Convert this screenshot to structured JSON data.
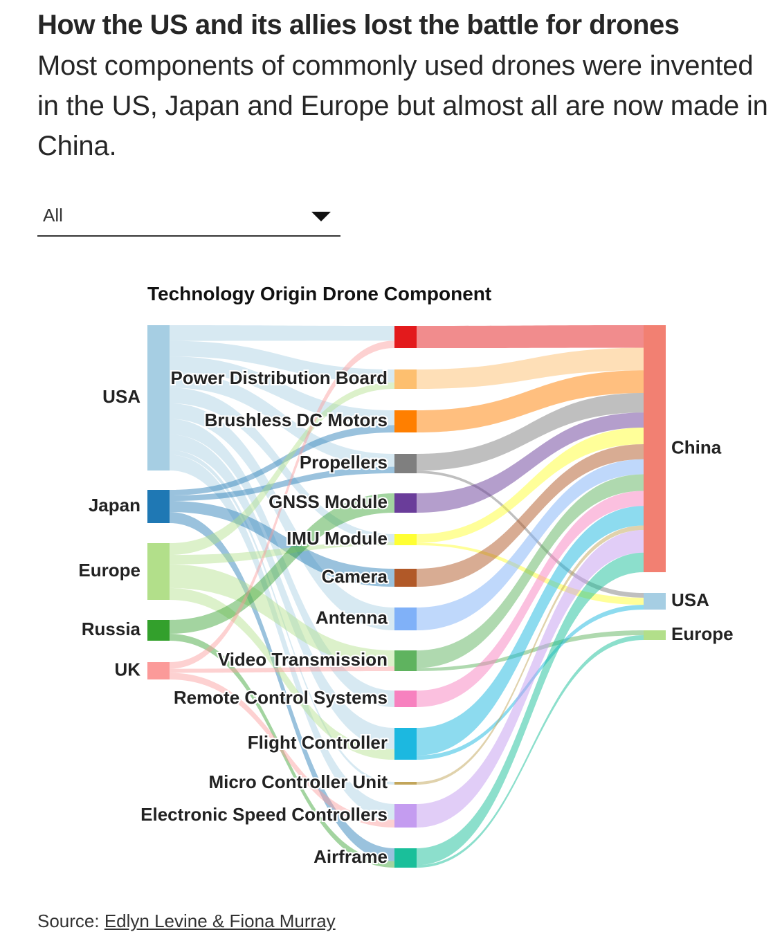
{
  "title": "How the US and its allies lost the battle for drones",
  "subtitle": "Most components of commonly used drones were invented in the US, Japan and Europe but almost all are now made in China.",
  "filter": {
    "selected": "All"
  },
  "source": {
    "label": "Source: ",
    "link_text": "Edlyn Levine & Fiona Murray"
  },
  "chart_data": {
    "type": "sankey",
    "column_headers": [
      "Technology Origin",
      "Drone Component"
    ],
    "origins": [
      {
        "name": "USA",
        "color": "#a6cee3"
      },
      {
        "name": "Japan",
        "color": "#1f78b4"
      },
      {
        "name": "Europe",
        "color": "#b2df8a"
      },
      {
        "name": "Russia",
        "color": "#33a02c"
      },
      {
        "name": "UK",
        "color": "#fb9a99"
      }
    ],
    "components": [
      {
        "name": "",
        "color": "#e31a1c"
      },
      {
        "name": "Power Distribution Board",
        "color": "#fdbf6f"
      },
      {
        "name": "Brushless DC Motors",
        "color": "#ff7f00"
      },
      {
        "name": "Propellers",
        "color": "#7f7f7f"
      },
      {
        "name": "GNSS Module",
        "color": "#6a3d9a"
      },
      {
        "name": "IMU Module",
        "color": "#ffff33"
      },
      {
        "name": "Camera",
        "color": "#b15928"
      },
      {
        "name": "Antenna",
        "color": "#80b1f8"
      },
      {
        "name": "Video Transmission",
        "color": "#5fb35f"
      },
      {
        "name": "Remote Control Systems",
        "color": "#f781bf"
      },
      {
        "name": "Flight Controller",
        "color": "#1cb8e0"
      },
      {
        "name": "Micro Controller Unit",
        "color": "#c2a55a"
      },
      {
        "name": "Electronic Speed Controllers",
        "color": "#c49cf0"
      },
      {
        "name": "Airframe",
        "color": "#1abf9a"
      }
    ],
    "destinations": [
      {
        "name": "China",
        "color": "#f28072"
      },
      {
        "name": "USA",
        "color": "#a6cee3"
      },
      {
        "name": "Europe",
        "color": "#b2df8a"
      }
    ],
    "origin_to_component": [
      [
        "USA",
        "",
        1
      ],
      [
        "USA",
        "Power Distribution Board",
        1
      ],
      [
        "USA",
        "Brushless DC Motors",
        1
      ],
      [
        "USA",
        "Propellers",
        1
      ],
      [
        "USA",
        "IMU Module",
        1
      ],
      [
        "USA",
        "Antenna",
        1
      ],
      [
        "USA",
        "Remote Control Systems",
        1
      ],
      [
        "USA",
        "Flight Controller",
        1
      ],
      [
        "USA",
        "Micro Controller Unit",
        0.3
      ],
      [
        "USA",
        "Electronic Speed Controllers",
        1
      ],
      [
        "Japan",
        "Brushless DC Motors",
        0.5
      ],
      [
        "Japan",
        "Propellers",
        0.5
      ],
      [
        "Japan",
        "Camera",
        1
      ],
      [
        "Japan",
        "Airframe",
        1
      ],
      [
        "Europe",
        "Power Distribution Board",
        0.5
      ],
      [
        "Europe",
        "IMU Module",
        0.4
      ],
      [
        "Europe",
        "Video Transmission",
        1
      ],
      [
        "Europe",
        "Flight Controller",
        0.5
      ],
      [
        "Russia",
        "GNSS Module",
        1
      ],
      [
        "Russia",
        "Airframe",
        0.5
      ],
      [
        "UK",
        "",
        0.5
      ],
      [
        "UK",
        "Video Transmission",
        0.3
      ],
      [
        "UK",
        "Electronic Speed Controllers",
        0.5
      ]
    ],
    "component_to_destination": [
      [
        "",
        "China",
        1.5
      ],
      [
        "Power Distribution Board",
        "China",
        1.5
      ],
      [
        "Brushless DC Motors",
        "China",
        1.5
      ],
      [
        "Propellers",
        "China",
        1.3
      ],
      [
        "Propellers",
        "USA",
        0.2
      ],
      [
        "GNSS Module",
        "China",
        1
      ],
      [
        "IMU Module",
        "China",
        1.1
      ],
      [
        "IMU Module",
        "USA",
        0.3
      ],
      [
        "Camera",
        "China",
        1
      ],
      [
        "Antenna",
        "China",
        1
      ],
      [
        "Video Transmission",
        "China",
        1.1
      ],
      [
        "Video Transmission",
        "Europe",
        0.2
      ],
      [
        "Remote Control Systems",
        "China",
        1
      ],
      [
        "Flight Controller",
        "China",
        1.3
      ],
      [
        "Flight Controller",
        "USA",
        0.2
      ],
      [
        "Micro Controller Unit",
        "China",
        0.3
      ],
      [
        "Electronic Speed Controllers",
        "China",
        1.5
      ],
      [
        "Airframe",
        "China",
        1.3
      ],
      [
        "Airframe",
        "Europe",
        0.2
      ]
    ]
  }
}
